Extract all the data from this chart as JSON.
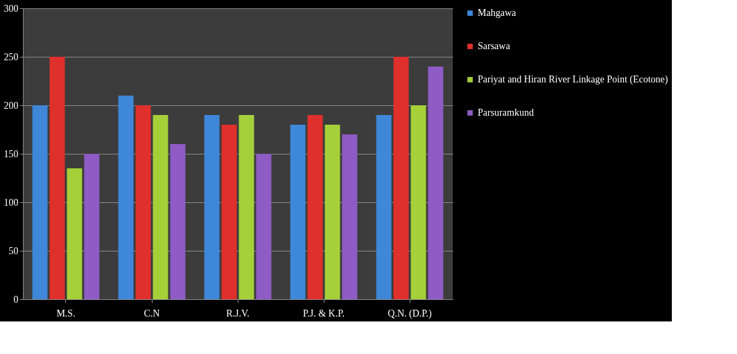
{
  "chart_data": {
    "type": "bar",
    "categories": [
      "M.S.",
      "C.N",
      "R.J.V.",
      "P.J. & K.P.",
      "Q.N. (D.P.)"
    ],
    "series": [
      {
        "name": "Mahgawa",
        "color": "#3f87d8",
        "values": [
          200,
          210,
          190,
          180,
          190
        ]
      },
      {
        "name": "Sarsawa",
        "color": "#e0302c",
        "values": [
          250,
          200,
          180,
          190,
          250
        ]
      },
      {
        "name": "Pariyat and Hiran River Linkage Point (Ecotone)",
        "color": "#a6d03a",
        "values": [
          135,
          190,
          190,
          180,
          200
        ]
      },
      {
        "name": "Parsuramkund",
        "color": "#8e5cc4",
        "values": [
          150,
          160,
          150,
          170,
          240
        ]
      }
    ],
    "ylim": [
      0,
      300
    ],
    "yticks": [
      0,
      50,
      100,
      150,
      200,
      250,
      300
    ],
    "grid": "y",
    "legend": "right"
  }
}
